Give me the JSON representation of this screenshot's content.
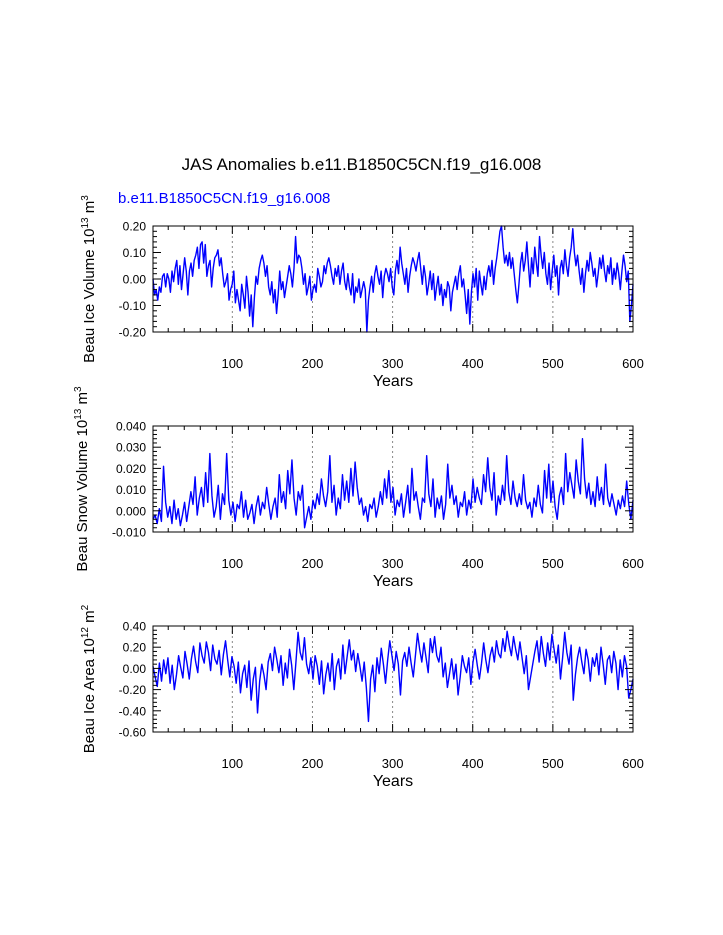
{
  "title": "JAS Anomalies b.e11.B1850C5CN.f19_g16.008",
  "case_label": "b.e11.B1850C5CN.f19_g16.008",
  "colors": {
    "series": "#0000ff",
    "axis": "#000000",
    "grid": "#888888"
  },
  "chart_data": [
    {
      "type": "line",
      "id": "ice-volume",
      "ylabel_main": "Beau Ice Volume 10",
      "ylabel_exp": "13",
      "ylabel_unit": " m",
      "ylabel_unit_exp": "3",
      "xlabel": "Years",
      "xlim": [
        1,
        600
      ],
      "ylim": [
        -0.2,
        0.2
      ],
      "x_ticks": [
        "100",
        "200",
        "300",
        "400",
        "500",
        "600"
      ],
      "y_ticks": [
        "0.20",
        "0.10",
        "0.00",
        "-0.10",
        "-0.20"
      ],
      "y_tick_values": [
        0.2,
        0.1,
        0.0,
        -0.1,
        -0.2
      ],
      "grid_x": [
        100,
        200,
        300,
        400,
        500
      ],
      "series": [
        {
          "name": "b.e11.B1850C5CN.f19_g16.008",
          "values": [
            0.0,
            -0.06,
            -0.04,
            -0.08,
            -0.03,
            -0.05,
            0.01,
            0.02,
            -0.03,
            0.02,
            0.0,
            -0.05,
            0.03,
            -0.01,
            0.04,
            0.07,
            -0.02,
            0.05,
            -0.04,
            0.02,
            0.08,
            0.03,
            -0.06,
            0.03,
            0.06,
            0.01,
            0.07,
            0.09,
            0.12,
            0.04,
            0.13,
            0.14,
            0.06,
            0.13,
            0.01,
            0.05,
            0.07,
            -0.03,
            0.04,
            0.08,
            0.09,
            0.11,
            0.05,
            0.08,
            0.02,
            -0.03,
            -0.01,
            0.02,
            -0.08,
            -0.04,
            -0.02,
            0.03,
            -0.09,
            -0.04,
            -0.08,
            -0.12,
            -0.02,
            -0.06,
            -0.11,
            0.01,
            -0.05,
            -0.14,
            -0.06,
            -0.18,
            -0.07,
            0.01,
            -0.02,
            0.04,
            0.07,
            0.09,
            0.06,
            0.01,
            0.05,
            -0.03,
            -0.06,
            -0.01,
            -0.09,
            -0.04,
            -0.13,
            -0.06,
            0.03,
            -0.04,
            -0.01,
            -0.07,
            -0.03,
            0.01,
            0.05,
            0.02,
            -0.03,
            0.04,
            0.16,
            0.06,
            0.09,
            0.08,
            0.04,
            -0.02,
            0.02,
            -0.06,
            -0.03,
            0.01,
            -0.08,
            -0.04,
            -0.02,
            -0.05,
            0.04,
            0.01,
            -0.03,
            -0.01,
            0.05,
            0.02,
            0.06,
            0.08,
            0.05,
            0.01,
            -0.02,
            0.04,
            0.01,
            0.05,
            -0.02,
            0.03,
            0.06,
            -0.01,
            -0.04,
            0.02,
            -0.03,
            -0.06,
            0.02,
            -0.09,
            -0.03,
            -0.05,
            0.0,
            -0.07,
            -0.04,
            -0.01,
            -0.04,
            -0.2,
            -0.08,
            -0.03,
            0.01,
            -0.05,
            0.02,
            0.05,
            0.01,
            -0.02,
            0.03,
            -0.07,
            0.01,
            0.04,
            0.02,
            -0.01,
            0.04,
            -0.03,
            -0.06,
            0.03,
            0.07,
            0.02,
            0.12,
            0.06,
            0.02,
            -0.02,
            0.04,
            -0.05,
            0.01,
            0.05,
            0.08,
            0.06,
            0.03,
            0.07,
            0.1,
            0.04,
            -0.02,
            0.05,
            0.01,
            -0.06,
            -0.02,
            0.03,
            -0.04,
            0.02,
            -0.08,
            -0.03,
            0.01,
            -0.06,
            -0.02,
            -0.1,
            -0.04,
            -0.07,
            -0.01,
            -0.03,
            -0.12,
            -0.05,
            -0.02,
            0.01,
            -0.04,
            0.02,
            0.05,
            -0.03,
            0.0,
            -0.06,
            -0.13,
            -0.04,
            -0.17,
            -0.05,
            0.02,
            -0.03,
            0.04,
            -0.08,
            0.03,
            -0.02,
            -0.06,
            0.01,
            -0.04,
            0.02,
            0.05,
            0.01,
            0.07,
            -0.02,
            0.04,
            0.08,
            0.13,
            0.18,
            0.2,
            0.12,
            0.06,
            0.09,
            0.05,
            0.1,
            0.04,
            0.08,
            0.02,
            -0.04,
            -0.09,
            -0.02,
            0.06,
            0.1,
            0.03,
            0.07,
            0.14,
            0.05,
            -0.03,
            0.08,
            0.02,
            0.12,
            0.06,
            0.01,
            0.16,
            0.09,
            0.04,
            0.1,
            0.02,
            -0.02,
            0.06,
            -0.04,
            0.03,
            0.09,
            0.01,
            0.05,
            -0.06,
            0.04,
            0.07,
            0.02,
            0.11,
            0.05,
            0.01,
            0.08,
            0.12,
            0.19,
            0.1,
            0.05,
            0.09,
            0.03,
            -0.02,
            0.04,
            -0.05,
            0.02,
            0.07,
            0.03,
            0.1,
            0.06,
            0.01,
            0.04,
            -0.03,
            0.02,
            0.08,
            0.04,
            0.09,
            0.03,
            -0.01,
            0.05,
            0.02,
            0.08,
            -0.02,
            0.04,
            0.0,
            0.06,
            0.02,
            -0.04,
            0.03,
            0.09,
            0.05,
            -0.01,
            0.03,
            -0.16,
            -0.1,
            -0.02
          ]
        }
      ]
    },
    {
      "type": "line",
      "id": "snow-volume",
      "ylabel_main": "Beau Snow Volume 10",
      "ylabel_exp": "13",
      "ylabel_unit": " m",
      "ylabel_unit_exp": "3",
      "xlabel": "Years",
      "xlim": [
        1,
        600
      ],
      "ylim": [
        -0.01,
        0.04
      ],
      "x_ticks": [
        "100",
        "200",
        "300",
        "400",
        "500",
        "600"
      ],
      "y_ticks": [
        "0.040",
        "0.030",
        "0.020",
        "0.010",
        "0.000",
        "-0.010"
      ],
      "y_tick_values": [
        0.04,
        0.03,
        0.02,
        0.01,
        0.0,
        -0.01
      ],
      "grid_x": [
        100,
        200,
        300,
        400,
        500
      ],
      "series": [
        {
          "name": "b.e11.B1850C5CN.f19_g16.008",
          "values": [
            -0.004,
            -0.002,
            -0.006,
            0.001,
            -0.005,
            0.021,
            0.004,
            -0.003,
            0.002,
            -0.006,
            0.005,
            -0.004,
            0.001,
            -0.007,
            -0.002,
            0.004,
            -0.005,
            0.002,
            0.009,
            0.003,
            0.016,
            -0.002,
            0.006,
            0.011,
            0.002,
            0.018,
            0.004,
            0.027,
            0.007,
            -0.003,
            0.002,
            0.012,
            -0.004,
            0.008,
            0.003,
            0.027,
            0.005,
            -0.002,
            0.004,
            -0.005,
            0.003,
            0.001,
            0.009,
            -0.003,
            0.005,
            -0.004,
            -0.001,
            0.003,
            -0.006,
            0.002,
            0.007,
            -0.002,
            0.004,
            0.001,
            0.011,
            0.003,
            -0.004,
            0.002,
            0.006,
            -0.003,
            0.017,
            0.004,
            0.009,
            0.001,
            0.019,
            0.008,
            0.024,
            0.006,
            -0.002,
            0.009,
            0.005,
            0.012,
            -0.008,
            -0.003,
            0.002,
            -0.004,
            0.005,
            0.001,
            0.008,
            0.003,
            0.015,
            0.007,
            0.002,
            0.009,
            0.026,
            0.004,
            0.012,
            -0.002,
            0.006,
            0.001,
            0.017,
            0.005,
            0.014,
            0.004,
            0.02,
            0.007,
            0.023,
            0.011,
            0.003,
            0.006,
            -0.002,
            0.002,
            -0.005,
            0.003,
            0.001,
            0.006,
            -0.003,
            0.002,
            0.009,
            0.003,
            0.015,
            0.006,
            0.019,
            0.004,
            0.011,
            -0.002,
            0.005,
            0.002,
            0.008,
            -0.003,
            0.004,
            0.012,
            -0.001,
            0.02,
            0.005,
            0.009,
            0.002,
            -0.004,
            0.006,
            0.004,
            0.026,
            0.008,
            0.002,
            0.015,
            -0.003,
            0.006,
            0.001,
            0.007,
            -0.004,
            0.003,
            0.022,
            0.006,
            0.012,
            0.003,
            0.007,
            -0.003,
            0.004,
            0.002,
            0.009,
            -0.002,
            0.005,
            0.001,
            0.015,
            0.004,
            0.011,
            0.006,
            0.003,
            0.017,
            0.009,
            0.025,
            0.011,
            0.005,
            0.018,
            -0.002,
            0.007,
            0.003,
            0.012,
            0.005,
            0.026,
            0.009,
            0.003,
            0.014,
            0.006,
            0.002,
            0.008,
            0.003,
            0.017,
            0.005,
            0.001,
            0.004,
            -0.003,
            0.006,
            0.002,
            0.012,
            0.003,
            -0.001,
            0.019,
            0.006,
            0.022,
            0.004,
            0.014,
            0.002,
            -0.004,
            0.007,
            0.011,
            0.003,
            0.027,
            0.009,
            0.018,
            0.012,
            0.006,
            0.024,
            0.014,
            0.008,
            0.034,
            0.015,
            0.006,
            0.013,
            0.003,
            0.009,
            0.002,
            0.016,
            0.005,
            0.011,
            0.003,
            0.022,
            0.006,
            0.002,
            0.008,
            0.003,
            -0.002,
            0.005,
            0.001,
            0.007,
            0.002,
            0.014,
            0.003,
            -0.004,
            0.005
          ]
        }
      ]
    },
    {
      "type": "line",
      "id": "ice-area",
      "ylabel_main": "Beau Ice Area 10",
      "ylabel_exp": "12",
      "ylabel_unit": " m",
      "ylabel_unit_exp": "2",
      "xlabel": "Years",
      "xlim": [
        1,
        600
      ],
      "ylim": [
        -0.6,
        0.4
      ],
      "x_ticks": [
        "100",
        "200",
        "300",
        "400",
        "500",
        "600"
      ],
      "y_ticks": [
        "0.40",
        "0.20",
        "0.00",
        "-0.20",
        "-0.40",
        "-0.60"
      ],
      "y_tick_values": [
        0.4,
        0.2,
        0.0,
        -0.2,
        -0.4,
        -0.6
      ],
      "grid_x": [
        100,
        200,
        300,
        400,
        500
      ],
      "series": [
        {
          "name": "b.e11.B1850C5CN.f19_g16.008",
          "values": [
            0.02,
            -0.08,
            -0.17,
            0.05,
            -0.12,
            0.08,
            -0.05,
            0.1,
            -0.14,
            0.03,
            -0.2,
            -0.06,
            0.12,
            0.01,
            -0.09,
            0.16,
            0.04,
            -0.1,
            0.09,
            0.21,
            0.06,
            -0.04,
            0.24,
            0.12,
            0.05,
            0.25,
            0.15,
            -0.02,
            0.22,
            0.09,
            0.04,
            0.17,
            -0.06,
            0.13,
            0.26,
            0.08,
            -0.08,
            0.11,
            0.02,
            -0.14,
            0.06,
            -0.23,
            -0.05,
            0.03,
            -0.18,
            0.07,
            -0.3,
            -0.1,
            0.01,
            -0.42,
            -0.12,
            0.04,
            -0.06,
            -0.2,
            0.06,
            0.14,
            -0.02,
            0.2,
            0.09,
            -0.04,
            0.12,
            -0.16,
            0.05,
            -0.09,
            0.18,
            0.03,
            -0.2,
            0.06,
            0.34,
            0.15,
            0.08,
            0.29,
            0.04,
            -0.05,
            0.1,
            -0.1,
            0.12,
            0.02,
            -0.15,
            0.07,
            -0.24,
            -0.06,
            0.05,
            -0.12,
            0.14,
            -0.2,
            0.02,
            0.09,
            -0.1,
            0.22,
            -0.05,
            0.11,
            0.27,
            0.08,
            0.17,
            -0.03,
            0.14,
            0.02,
            -0.12,
            0.06,
            -0.18,
            -0.5,
            -0.1,
            0.03,
            -0.22,
            0.1,
            -0.05,
            0.19,
            0.04,
            -0.14,
            0.08,
            0.26,
            0.12,
            -0.02,
            0.16,
            0.04,
            -0.25,
            0.07,
            0.15,
            0.02,
            0.2,
            0.05,
            -0.08,
            0.12,
            0.33,
            0.18,
            0.06,
            0.24,
            0.1,
            -0.04,
            0.28,
            0.15,
            0.3,
            0.12,
            0.06,
            0.2,
            -0.08,
            0.05,
            -0.18,
            -0.05,
            0.09,
            -0.1,
            0.04,
            -0.25,
            -0.08,
            0.12,
            0.02,
            -0.04,
            0.1,
            -0.15,
            0.06,
            0.18,
            0.03,
            -0.1,
            0.05,
            0.24,
            0.08,
            -0.04,
            0.12,
            0.2,
            0.06,
            0.26,
            0.14,
            0.1,
            0.28,
            0.16,
            0.35,
            0.22,
            0.12,
            0.3,
            0.18,
            0.08,
            0.25,
            0.1,
            -0.05,
            0.12,
            -0.2,
            -0.08,
            0.04,
            0.16,
            0.26,
            0.06,
            0.3,
            0.14,
            0.02,
            0.24,
            0.08,
            0.32,
            0.18,
            0.05,
            0.22,
            -0.1,
            0.1,
            0.34,
            0.15,
            0.04,
            0.22,
            -0.3,
            -0.06,
            0.1,
            0.2,
            0.06,
            -0.05,
            0.18,
            0.08,
            -0.12,
            0.1,
            0.02,
            0.14,
            -0.06,
            0.2,
            0.04,
            -0.15,
            0.08,
            0.12,
            -0.04,
            0.16,
            0.05,
            -0.2,
            0.08,
            -0.08,
            0.12,
            0.02,
            -0.28,
            -0.2,
            -0.1
          ]
        }
      ]
    }
  ]
}
